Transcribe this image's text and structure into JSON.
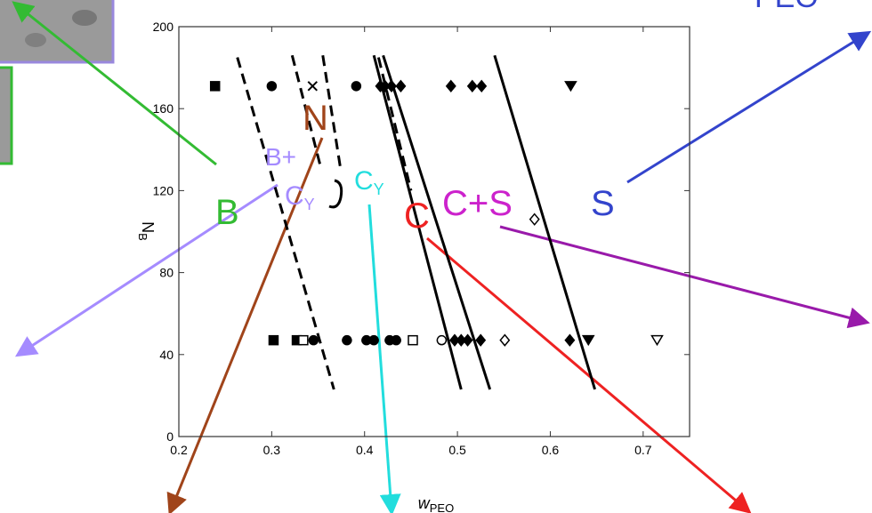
{
  "chart_data": {
    "type": "scatter",
    "xlabel": {
      "text": "w",
      "sub": "PEO"
    },
    "ylabel": {
      "text": "N",
      "sub": "B"
    },
    "xlim": [
      0.2,
      0.75
    ],
    "ylim": [
      0,
      200
    ],
    "xticks": [
      0.2,
      0.3,
      0.4,
      0.5,
      0.6,
      0.7
    ],
    "yticks": [
      0,
      40,
      80,
      120,
      160,
      200
    ],
    "series": [
      {
        "marker": "square",
        "filled": true,
        "color": "#000000",
        "x": [
          0.239,
          0.302,
          0.327
        ],
        "values": [
          171,
          47,
          47
        ]
      },
      {
        "marker": "circle",
        "filled": true,
        "color": "#000000",
        "x": [
          0.3,
          0.391,
          0.345,
          0.381,
          0.402,
          0.41,
          0.427,
          0.434
        ],
        "values": [
          171,
          171,
          47,
          47,
          47,
          47,
          47,
          47
        ]
      },
      {
        "marker": "cross",
        "filled": true,
        "color": "#000000",
        "x": [
          0.344
        ],
        "values": [
          171
        ]
      },
      {
        "marker": "diamond",
        "filled": true,
        "color": "#000000",
        "x": [
          0.417,
          0.422,
          0.429,
          0.439,
          0.493,
          0.516,
          0.526,
          0.497,
          0.504,
          0.511,
          0.525,
          0.621
        ],
        "values": [
          171,
          171,
          171,
          171,
          171,
          171,
          171,
          47,
          47,
          47,
          47,
          47
        ]
      },
      {
        "marker": "triangle-down",
        "filled": true,
        "color": "#000000",
        "x": [
          0.622,
          0.641
        ],
        "values": [
          171,
          47
        ]
      },
      {
        "marker": "square",
        "filled": false,
        "color": "#000000",
        "x": [
          0.334,
          0.452
        ],
        "values": [
          47,
          47
        ]
      },
      {
        "marker": "circle",
        "filled": false,
        "color": "#000000",
        "x": [
          0.483
        ],
        "values": [
          47
        ]
      },
      {
        "marker": "diamond",
        "filled": false,
        "color": "#000000",
        "x": [
          0.551,
          0.583
        ],
        "values": [
          47,
          106
        ]
      },
      {
        "marker": "triangle-down",
        "filled": false,
        "color": "#000000",
        "x": [
          0.715
        ],
        "values": [
          47
        ]
      }
    ],
    "boundaries": [
      {
        "dashed": true,
        "x": [
          0.263,
          0.367
        ],
        "values": [
          185,
          23
        ]
      },
      {
        "dashed": true,
        "x": [
          0.322,
          0.353
        ],
        "values": [
          186,
          131
        ]
      },
      {
        "dashed": true,
        "x": [
          0.355,
          0.374
        ],
        "values": [
          186,
          131
        ]
      },
      {
        "dashed": false,
        "x": [
          0.41,
          0.504
        ],
        "values": [
          186,
          23
        ]
      },
      {
        "dashed": true,
        "x": [
          0.415,
          0.45
        ],
        "values": [
          185,
          120
        ]
      },
      {
        "dashed": false,
        "x": [
          0.42,
          0.535
        ],
        "values": [
          186,
          23
        ]
      },
      {
        "dashed": false,
        "x": [
          0.54,
          0.648
        ],
        "values": [
          186,
          23
        ]
      }
    ],
    "annotations": [
      {
        "text": "B",
        "color": "#33bb33"
      },
      {
        "text": "B+",
        "color": "#a58bff"
      },
      {
        "text": "C",
        "sub": "Y",
        "color": "#a58bff"
      },
      {
        "text": "N",
        "color": "#a0441a"
      },
      {
        "text": "C",
        "sub": "Y",
        "color": "#22dddd"
      },
      {
        "text": "C",
        "color": "#ee2222"
      },
      {
        "text": "C+S",
        "color": "#cc22cc"
      },
      {
        "text": "S",
        "color": "#3344cc"
      },
      {
        "text": "PEO",
        "color": "#3344cc"
      }
    ]
  }
}
